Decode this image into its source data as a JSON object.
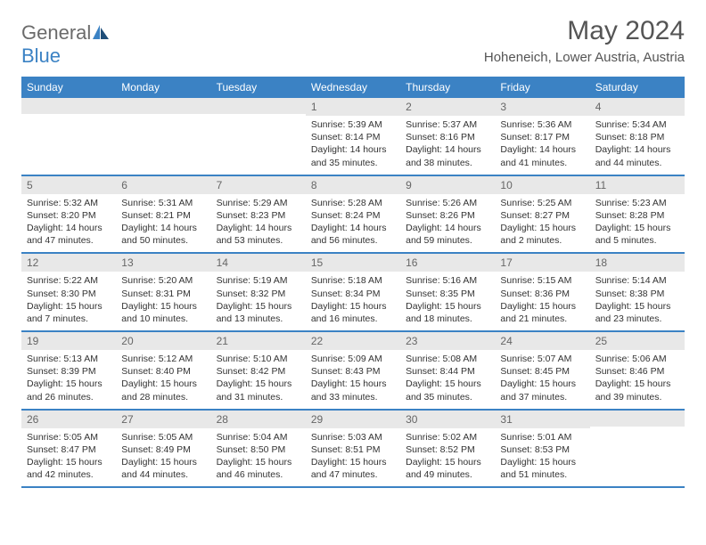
{
  "logo": {
    "text1": "General",
    "text2": "Blue"
  },
  "title": "May 2024",
  "location": "Hoheneich, Lower Austria, Austria",
  "colors": {
    "header_bg": "#3b82c4",
    "daynum_bg": "#e8e8e8",
    "text_body": "#333333",
    "text_muted": "#666666",
    "rule": "#3b82c4"
  },
  "weekdays": [
    "Sunday",
    "Monday",
    "Tuesday",
    "Wednesday",
    "Thursday",
    "Friday",
    "Saturday"
  ],
  "weeks": [
    [
      {
        "n": "",
        "sunrise": "",
        "sunset": "",
        "daylight": ""
      },
      {
        "n": "",
        "sunrise": "",
        "sunset": "",
        "daylight": ""
      },
      {
        "n": "",
        "sunrise": "",
        "sunset": "",
        "daylight": ""
      },
      {
        "n": "1",
        "sunrise": "Sunrise: 5:39 AM",
        "sunset": "Sunset: 8:14 PM",
        "daylight": "Daylight: 14 hours and 35 minutes."
      },
      {
        "n": "2",
        "sunrise": "Sunrise: 5:37 AM",
        "sunset": "Sunset: 8:16 PM",
        "daylight": "Daylight: 14 hours and 38 minutes."
      },
      {
        "n": "3",
        "sunrise": "Sunrise: 5:36 AM",
        "sunset": "Sunset: 8:17 PM",
        "daylight": "Daylight: 14 hours and 41 minutes."
      },
      {
        "n": "4",
        "sunrise": "Sunrise: 5:34 AM",
        "sunset": "Sunset: 8:18 PM",
        "daylight": "Daylight: 14 hours and 44 minutes."
      }
    ],
    [
      {
        "n": "5",
        "sunrise": "Sunrise: 5:32 AM",
        "sunset": "Sunset: 8:20 PM",
        "daylight": "Daylight: 14 hours and 47 minutes."
      },
      {
        "n": "6",
        "sunrise": "Sunrise: 5:31 AM",
        "sunset": "Sunset: 8:21 PM",
        "daylight": "Daylight: 14 hours and 50 minutes."
      },
      {
        "n": "7",
        "sunrise": "Sunrise: 5:29 AM",
        "sunset": "Sunset: 8:23 PM",
        "daylight": "Daylight: 14 hours and 53 minutes."
      },
      {
        "n": "8",
        "sunrise": "Sunrise: 5:28 AM",
        "sunset": "Sunset: 8:24 PM",
        "daylight": "Daylight: 14 hours and 56 minutes."
      },
      {
        "n": "9",
        "sunrise": "Sunrise: 5:26 AM",
        "sunset": "Sunset: 8:26 PM",
        "daylight": "Daylight: 14 hours and 59 minutes."
      },
      {
        "n": "10",
        "sunrise": "Sunrise: 5:25 AM",
        "sunset": "Sunset: 8:27 PM",
        "daylight": "Daylight: 15 hours and 2 minutes."
      },
      {
        "n": "11",
        "sunrise": "Sunrise: 5:23 AM",
        "sunset": "Sunset: 8:28 PM",
        "daylight": "Daylight: 15 hours and 5 minutes."
      }
    ],
    [
      {
        "n": "12",
        "sunrise": "Sunrise: 5:22 AM",
        "sunset": "Sunset: 8:30 PM",
        "daylight": "Daylight: 15 hours and 7 minutes."
      },
      {
        "n": "13",
        "sunrise": "Sunrise: 5:20 AM",
        "sunset": "Sunset: 8:31 PM",
        "daylight": "Daylight: 15 hours and 10 minutes."
      },
      {
        "n": "14",
        "sunrise": "Sunrise: 5:19 AM",
        "sunset": "Sunset: 8:32 PM",
        "daylight": "Daylight: 15 hours and 13 minutes."
      },
      {
        "n": "15",
        "sunrise": "Sunrise: 5:18 AM",
        "sunset": "Sunset: 8:34 PM",
        "daylight": "Daylight: 15 hours and 16 minutes."
      },
      {
        "n": "16",
        "sunrise": "Sunrise: 5:16 AM",
        "sunset": "Sunset: 8:35 PM",
        "daylight": "Daylight: 15 hours and 18 minutes."
      },
      {
        "n": "17",
        "sunrise": "Sunrise: 5:15 AM",
        "sunset": "Sunset: 8:36 PM",
        "daylight": "Daylight: 15 hours and 21 minutes."
      },
      {
        "n": "18",
        "sunrise": "Sunrise: 5:14 AM",
        "sunset": "Sunset: 8:38 PM",
        "daylight": "Daylight: 15 hours and 23 minutes."
      }
    ],
    [
      {
        "n": "19",
        "sunrise": "Sunrise: 5:13 AM",
        "sunset": "Sunset: 8:39 PM",
        "daylight": "Daylight: 15 hours and 26 minutes."
      },
      {
        "n": "20",
        "sunrise": "Sunrise: 5:12 AM",
        "sunset": "Sunset: 8:40 PM",
        "daylight": "Daylight: 15 hours and 28 minutes."
      },
      {
        "n": "21",
        "sunrise": "Sunrise: 5:10 AM",
        "sunset": "Sunset: 8:42 PM",
        "daylight": "Daylight: 15 hours and 31 minutes."
      },
      {
        "n": "22",
        "sunrise": "Sunrise: 5:09 AM",
        "sunset": "Sunset: 8:43 PM",
        "daylight": "Daylight: 15 hours and 33 minutes."
      },
      {
        "n": "23",
        "sunrise": "Sunrise: 5:08 AM",
        "sunset": "Sunset: 8:44 PM",
        "daylight": "Daylight: 15 hours and 35 minutes."
      },
      {
        "n": "24",
        "sunrise": "Sunrise: 5:07 AM",
        "sunset": "Sunset: 8:45 PM",
        "daylight": "Daylight: 15 hours and 37 minutes."
      },
      {
        "n": "25",
        "sunrise": "Sunrise: 5:06 AM",
        "sunset": "Sunset: 8:46 PM",
        "daylight": "Daylight: 15 hours and 39 minutes."
      }
    ],
    [
      {
        "n": "26",
        "sunrise": "Sunrise: 5:05 AM",
        "sunset": "Sunset: 8:47 PM",
        "daylight": "Daylight: 15 hours and 42 minutes."
      },
      {
        "n": "27",
        "sunrise": "Sunrise: 5:05 AM",
        "sunset": "Sunset: 8:49 PM",
        "daylight": "Daylight: 15 hours and 44 minutes."
      },
      {
        "n": "28",
        "sunrise": "Sunrise: 5:04 AM",
        "sunset": "Sunset: 8:50 PM",
        "daylight": "Daylight: 15 hours and 46 minutes."
      },
      {
        "n": "29",
        "sunrise": "Sunrise: 5:03 AM",
        "sunset": "Sunset: 8:51 PM",
        "daylight": "Daylight: 15 hours and 47 minutes."
      },
      {
        "n": "30",
        "sunrise": "Sunrise: 5:02 AM",
        "sunset": "Sunset: 8:52 PM",
        "daylight": "Daylight: 15 hours and 49 minutes."
      },
      {
        "n": "31",
        "sunrise": "Sunrise: 5:01 AM",
        "sunset": "Sunset: 8:53 PM",
        "daylight": "Daylight: 15 hours and 51 minutes."
      },
      {
        "n": "",
        "sunrise": "",
        "sunset": "",
        "daylight": ""
      }
    ]
  ]
}
